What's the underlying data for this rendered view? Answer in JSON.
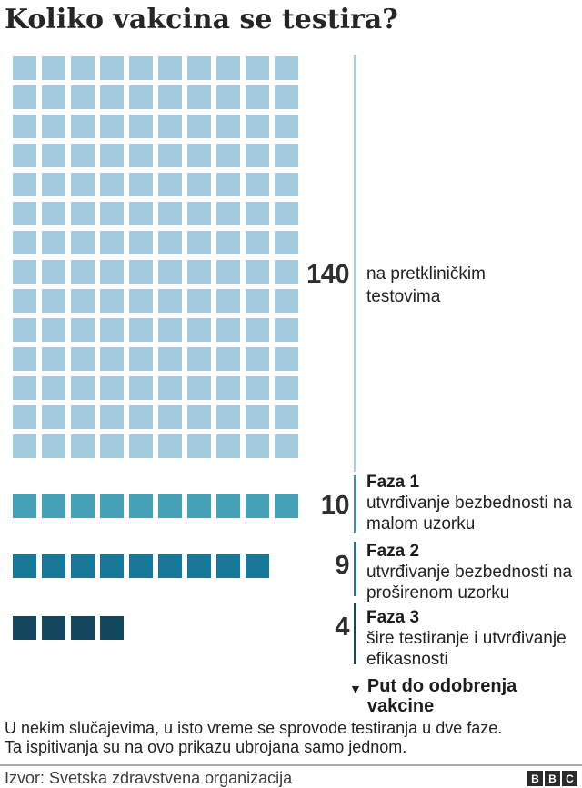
{
  "title": "Koliko vakcina se testira?",
  "chart_data": {
    "type": "waffle",
    "title": "Koliko vakcina se testira?",
    "unit_shape": "square",
    "legend_position": "right",
    "groups": [
      {
        "phase": "",
        "count": 140,
        "label": "na pretkliničkim testovima",
        "color": "#a2ccdd",
        "line_color": "#a6cfe0",
        "columns": 10,
        "rows": 14
      },
      {
        "phase": "Faza 1",
        "count": 10,
        "label": "utvrđivanje bezbednosti na malom uzorku",
        "color": "#45a1b8",
        "line_color": "#2f96ae",
        "columns": 10,
        "rows": 1
      },
      {
        "phase": "Faza 2",
        "count": 9,
        "label": "utvrđivanje bezbednosti na proširenom uzorku",
        "color": "#15799a",
        "line_color": "#15799a",
        "columns": 9,
        "rows": 1
      },
      {
        "phase": "Faza 3",
        "count": 4,
        "label": "šire testiranje i utvrđivanje efikasnosti",
        "color": "#11485c",
        "line_color": "#11485c",
        "columns": 4,
        "rows": 1
      }
    ],
    "arrow": {
      "symbol": "▼",
      "label": "Put do odobrenja vakcine"
    }
  },
  "footnote": {
    "line1": "U nekim slučajevima, u isto vreme se sprovode testiranja u dve faze.",
    "line2": "Ta ispitivanja su na ovo prikazu ubrojana samo jednom."
  },
  "source": "Izvor: Svetska zdravstvena organizacija",
  "logo": {
    "b1": "B",
    "b2": "B",
    "b3": "C"
  }
}
